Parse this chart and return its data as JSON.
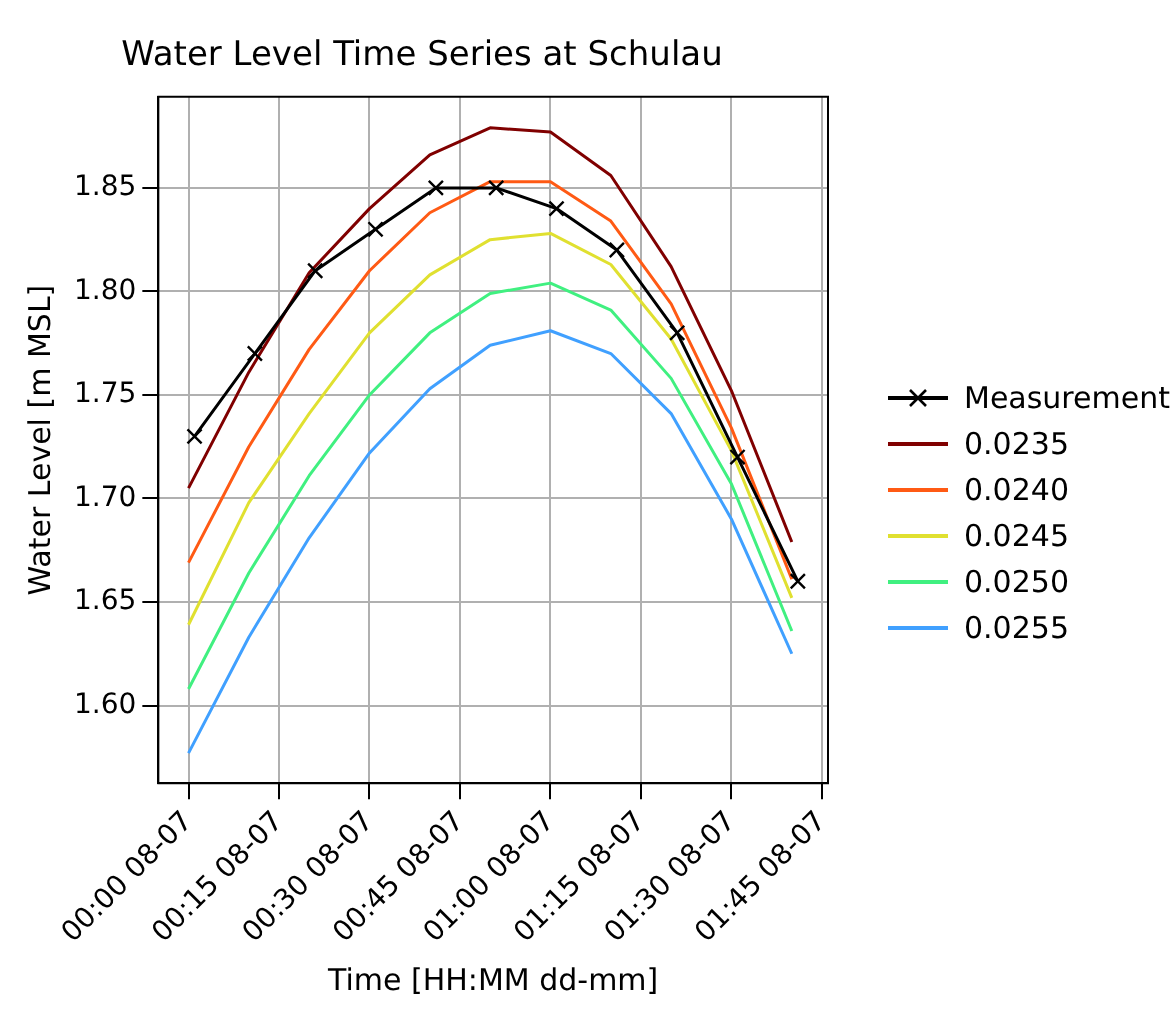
{
  "chart_data": {
    "type": "line",
    "title": "Water Level Time Series at Schulau",
    "xlabel": "Time [HH:MM dd-mm]",
    "ylabel": "Water Level [m MSL]",
    "xlim": [
      "--07-07T23:55",
      "--07-08T01:46"
    ],
    "ylim": [
      1.5624,
      1.894
    ],
    "xticks": [
      {
        "value": "--07-08T00:00",
        "label": "00:00 08-07"
      },
      {
        "value": "--07-08T00:15",
        "label": "00:15 08-07"
      },
      {
        "value": "--07-08T00:30",
        "label": "00:30 08-07"
      },
      {
        "value": "--07-08T00:45",
        "label": "00:45 08-07"
      },
      {
        "value": "--07-08T01:00",
        "label": "01:00 08-07"
      },
      {
        "value": "--07-08T01:15",
        "label": "01:15 08-07"
      },
      {
        "value": "--07-08T01:30",
        "label": "01:30 08-07"
      },
      {
        "value": "--07-08T01:45",
        "label": "01:45 08-07"
      }
    ],
    "yticks": [
      {
        "value": 1.6,
        "label": "1.60"
      },
      {
        "value": 1.65,
        "label": "1.65"
      },
      {
        "value": 1.7,
        "label": "1.70"
      },
      {
        "value": 1.75,
        "label": "1.75"
      },
      {
        "value": 1.8,
        "label": "1.80"
      },
      {
        "value": 1.85,
        "label": "1.85"
      }
    ],
    "grid": true,
    "legend": "right",
    "x": [
      "--07-08T00:00",
      "--07-08T00:10",
      "--07-08T00:20",
      "--07-08T00:30",
      "--07-08T00:40",
      "--07-08T00:50",
      "--07-08T01:00",
      "--07-08T01:10",
      "--07-08T01:20",
      "--07-08T01:30",
      "--07-08T01:40"
    ],
    "series": [
      {
        "name": "Measurement",
        "color": "#000000",
        "marker": "cross",
        "x": [
          "--07-08T00:01",
          "--07-08T00:11",
          "--07-08T00:21",
          "--07-08T00:31",
          "--07-08T00:41",
          "--07-08T00:51",
          "--07-08T01:01",
          "--07-08T01:11",
          "--07-08T01:21",
          "--07-08T01:31",
          "--07-08T01:41"
        ],
        "values": [
          1.73,
          1.77,
          1.81,
          1.83,
          1.85,
          1.85,
          1.84,
          1.82,
          1.78,
          1.72,
          1.66
        ]
      },
      {
        "name": "0.0235",
        "color": "#800000",
        "values": [
          1.705,
          1.761,
          1.809,
          1.84,
          1.866,
          1.879,
          1.877,
          1.856,
          1.812,
          1.752,
          1.679
        ]
      },
      {
        "name": "0.0240",
        "color": "#ff5a14",
        "values": [
          1.669,
          1.725,
          1.772,
          1.81,
          1.838,
          1.853,
          1.853,
          1.834,
          1.794,
          1.734,
          1.661
        ]
      },
      {
        "name": "0.0245",
        "color": "#e0e030",
        "values": [
          1.639,
          1.698,
          1.741,
          1.78,
          1.808,
          1.825,
          1.828,
          1.813,
          1.777,
          1.723,
          1.652
        ]
      },
      {
        "name": "0.0250",
        "color": "#40f080",
        "values": [
          1.608,
          1.664,
          1.711,
          1.75,
          1.78,
          1.799,
          1.804,
          1.791,
          1.758,
          1.707,
          1.636
        ]
      },
      {
        "name": "0.0255",
        "color": "#40a0ff",
        "values": [
          1.577,
          1.633,
          1.681,
          1.722,
          1.753,
          1.774,
          1.781,
          1.77,
          1.741,
          1.69,
          1.625
        ]
      }
    ]
  }
}
